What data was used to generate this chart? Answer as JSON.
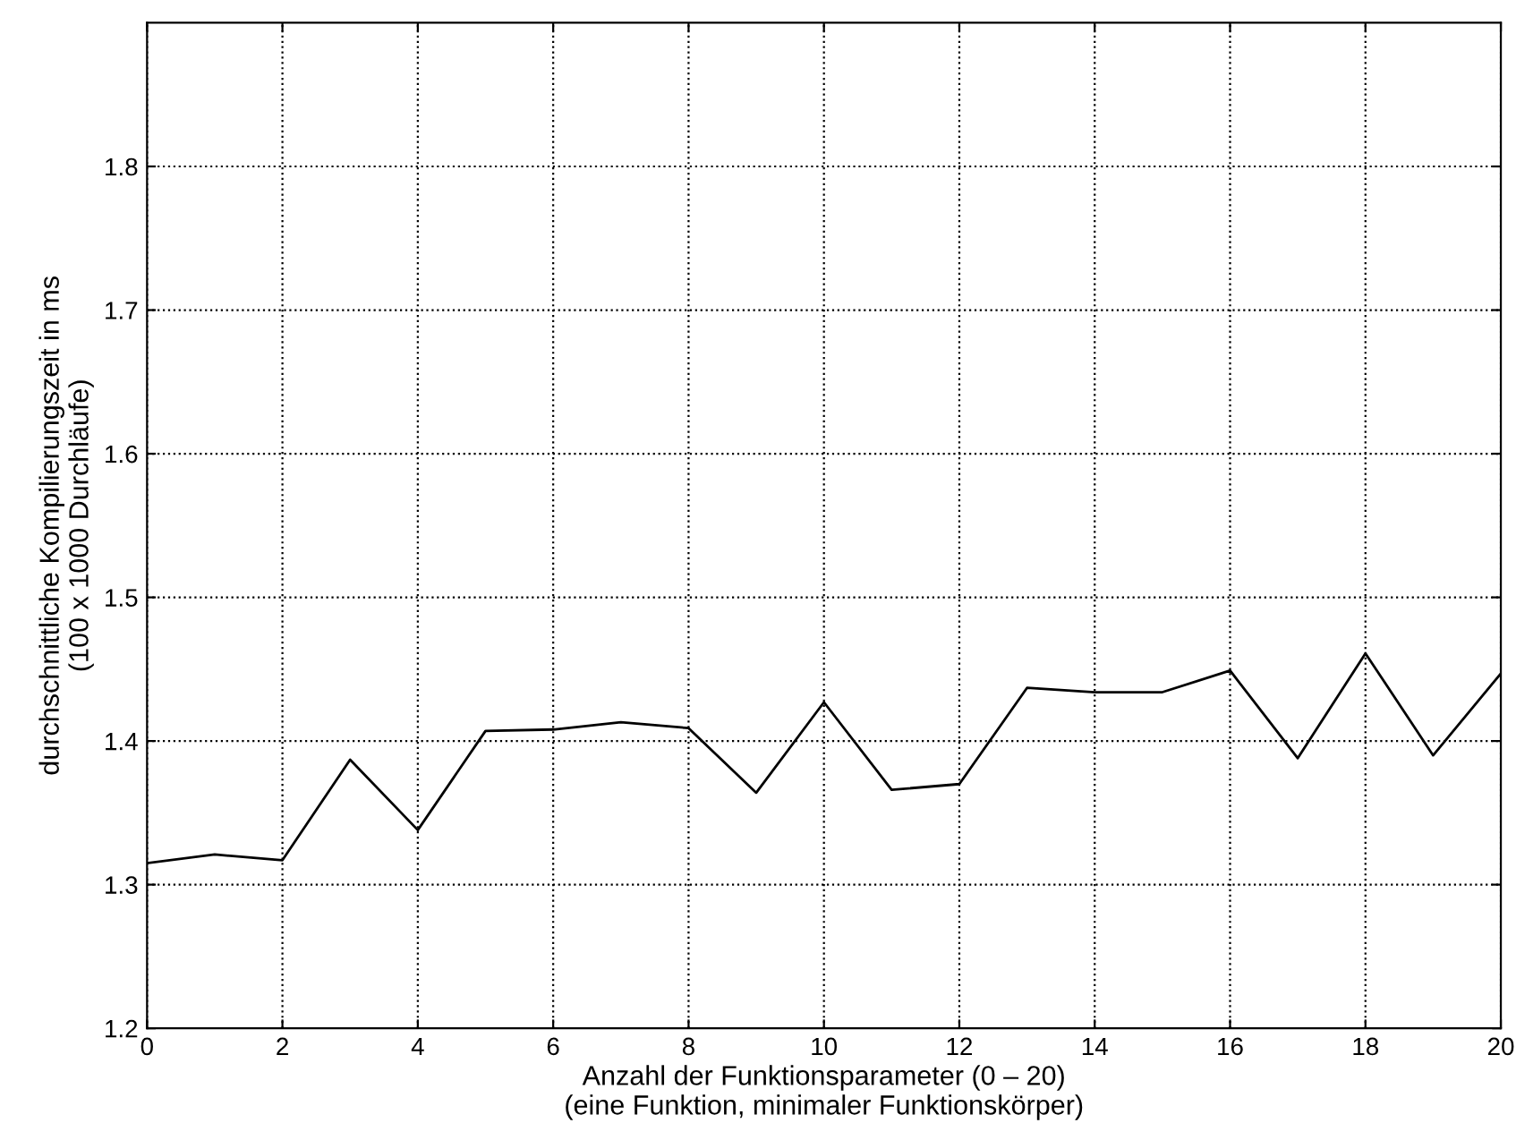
{
  "chart_data": {
    "type": "line",
    "xlabel": "Anzahl der Funktionsparameter (0 – 20)\n(eine Funktion, minimaler Funktionskörper)",
    "ylabel": "durchschnittliche Kompilierungszeit in ms\n(100 x 1000 Durchläufe)",
    "x": [
      0,
      1,
      2,
      3,
      4,
      5,
      6,
      7,
      8,
      9,
      10,
      11,
      12,
      13,
      14,
      15,
      16,
      17,
      18,
      19,
      20
    ],
    "series": [
      {
        "color": "#000000",
        "values": [
          1.315,
          1.321,
          1.317,
          1.387,
          1.338,
          1.407,
          1.408,
          1.413,
          1.409,
          1.364,
          1.427,
          1.366,
          1.37,
          1.437,
          1.434,
          1.434,
          1.449,
          1.388,
          1.461,
          1.39,
          1.447
        ]
      }
    ],
    "xlim": [
      0,
      20
    ],
    "xticks": [
      0,
      2,
      4,
      6,
      8,
      10,
      12,
      14,
      16,
      18,
      20
    ],
    "ylim": [
      1.2,
      1.9
    ],
    "yticks": [
      1.2,
      1.3,
      1.4,
      1.5,
      1.6,
      1.7,
      1.8
    ],
    "grid": true,
    "marker": "none",
    "line_style": "solid"
  }
}
